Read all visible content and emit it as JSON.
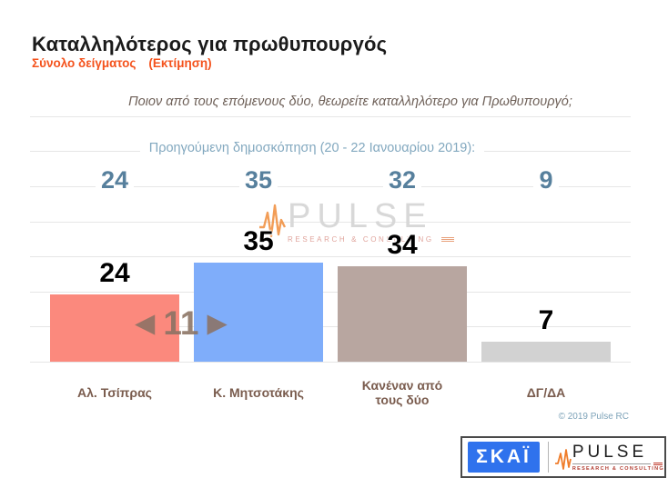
{
  "header": {
    "title": "Καταλληλότερος για πρωθυπουργός",
    "subtitle": "Σύνολο δείγματος",
    "subtitle_note": "(Εκτίμηση)",
    "question": "Ποιον από τους επόμενους δύο, θεωρείτε καταλληλότερο για Πρωθυπουργό;"
  },
  "chart_data": {
    "type": "bar",
    "title": "Καταλληλότερος για πρωθυπουργός",
    "categories": [
      "Αλ. Τσίπρας",
      "Κ. Μητσοτάκης",
      "Κανέναν από τους δύο",
      "ΔΓ/ΔΑ"
    ],
    "series": [
      {
        "name": "Εκτίμηση",
        "values": [
          24,
          35,
          34,
          7
        ]
      },
      {
        "name": "Προηγούμενη δημοσκόπηση (20 - 22 Ιανουαρίου 2019)",
        "values": [
          24,
          35,
          32,
          9
        ]
      }
    ],
    "previous_poll_label": "Προηγούμενη δημοσκόπηση (20 - 22 Ιανουαρίου 2019):",
    "bar_colors": [
      "#fb897d",
      "#7fadfa",
      "#b8a6a0",
      "#d2d2d2"
    ],
    "value_label_color": "#000000",
    "previous_value_color": "#57809d",
    "ylim": [
      0,
      45
    ],
    "grid": true,
    "legend_position": "none"
  },
  "pager": {
    "page_number": "11",
    "prev_icon": "◀",
    "next_icon": "▶"
  },
  "watermark": {
    "brand": "PULSE",
    "tagline": "RESEARCH & CONSULTING"
  },
  "footer": {
    "copyright": "© 2019 Pulse RC",
    "skai_label": "ΣΚΑΪ",
    "pulse_label": "PULSE",
    "pulse_tagline": "RESEARCH & CONSULTING"
  }
}
